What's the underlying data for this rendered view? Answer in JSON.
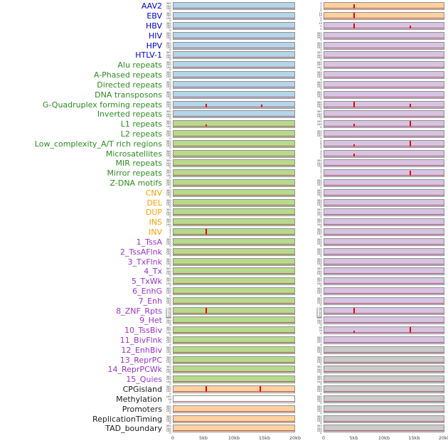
{
  "chart_data": {
    "type": "line",
    "layout": "small-multiples density tracks, 44 rows x 2 columns, red spike lines over flat baseline",
    "x_ticks": [
      "0",
      "5kb",
      "10kb",
      "15kb",
      "20kb"
    ],
    "x_range": [
      0,
      20000
    ],
    "default_yticks": [
      "300",
      "200",
      "100",
      "0"
    ],
    "rows": [
      {
        "label": "AAV2",
        "color": "label_blue",
        "left": {
          "bg": "blue_bg"
        },
        "right": {
          "bg": "orange_bg",
          "yticks": [
            "3",
            "2",
            "1",
            "0"
          ],
          "spikes": [
            {
              "x": 0.25,
              "h": 0.75
            }
          ]
        }
      },
      {
        "label": "EBV",
        "color": "label_blue",
        "left": {
          "bg": "blue_bg"
        },
        "right": {
          "bg": "orange_bg",
          "yticks": [
            "15",
            "10",
            "5",
            "0"
          ],
          "spikes": [
            {
              "x": 0.25,
              "h": 1.0
            }
          ]
        }
      },
      {
        "label": "HBV",
        "color": "label_blue",
        "left": {
          "bg": "blue_bg"
        },
        "right": {
          "bg": "purple_bg",
          "yticks": [
            "10",
            "5",
            "0"
          ],
          "spikes": [
            {
              "x": 0.25,
              "h": 0.8
            },
            {
              "x": 0.72,
              "h": 0.45
            }
          ]
        }
      },
      {
        "label": "HIV",
        "color": "label_blue",
        "left": {
          "bg": "blue_bg"
        },
        "right": {
          "bg": "purple_bg"
        }
      },
      {
        "label": "HPV",
        "color": "label_blue",
        "left": {
          "bg": "blue_bg"
        },
        "right": {
          "bg": "purple_bg"
        }
      },
      {
        "label": "HTLV-1",
        "color": "label_blue",
        "left": {
          "bg": "blue_bg"
        },
        "right": {
          "bg": "purple_bg"
        }
      },
      {
        "label": "Alu repeats",
        "color": "label_green",
        "left": {
          "bg": "blue_bg"
        },
        "right": {
          "bg": "purple_bg"
        }
      },
      {
        "label": "A-Phased repeats",
        "color": "label_green",
        "left": {
          "bg": "blue_bg"
        },
        "right": {
          "bg": "purple_bg"
        }
      },
      {
        "label": "Directed repeats",
        "color": "label_green",
        "left": {
          "bg": "blue_bg"
        },
        "right": {
          "bg": "purple_bg"
        }
      },
      {
        "label": "DNA transposons",
        "color": "label_green",
        "left": {
          "bg": "blue_bg"
        },
        "right": {
          "bg": "purple_bg"
        }
      },
      {
        "label": "G-Quadruplex forming repeats",
        "color": "label_green",
        "left": {
          "bg": "blue_bg",
          "spikes": [
            {
              "x": 0.27,
              "h": 0.5
            },
            {
              "x": 0.73,
              "h": 0.38
            }
          ]
        },
        "right": {
          "bg": "purple_bg",
          "spikes": [
            {
              "x": 0.25,
              "h": 0.85
            },
            {
              "x": 0.72,
              "h": 0.5
            }
          ]
        }
      },
      {
        "label": "Inverted repeats",
        "color": "label_green",
        "left": {
          "bg": "blue_bg"
        },
        "right": {
          "bg": "purple_bg"
        }
      },
      {
        "label": "L1 repeats",
        "color": "label_green",
        "left": {
          "bg": "green_bg",
          "spikes": [
            {
              "x": 0.27,
              "h": 0.4
            }
          ]
        },
        "right": {
          "bg": "purple_bg",
          "yticks": [
            "200",
            "100",
            "0"
          ],
          "spikes": [
            {
              "x": 0.25,
              "h": 0.5
            },
            {
              "x": 0.72,
              "h": 0.9
            }
          ]
        }
      },
      {
        "label": "L2 repeats",
        "color": "label_green",
        "left": {
          "bg": "green_bg"
        },
        "right": {
          "bg": "purple_bg"
        }
      },
      {
        "label": "Low_complexity_A/T rich regions",
        "color": "label_green",
        "left": {
          "bg": "green_bg"
        },
        "right": {
          "bg": "purple_bg",
          "yticks": [
            "9",
            "6",
            "3",
            "0"
          ],
          "spikes": [
            {
              "x": 0.25,
              "h": 0.35
            },
            {
              "x": 0.72,
              "h": 0.85
            }
          ]
        }
      },
      {
        "label": "Microsatellites",
        "color": "label_green",
        "left": {
          "bg": "green_bg"
        },
        "right": {
          "bg": "purple_bg",
          "yticks": [
            "3",
            "2",
            "1",
            "0"
          ],
          "spikes": [
            {
              "x": 0.25,
              "h": 0.45
            }
          ]
        }
      },
      {
        "label": "MIR repeats",
        "color": "label_green",
        "left": {
          "bg": "green_bg"
        },
        "right": {
          "bg": "purple_bg"
        }
      },
      {
        "label": "Mirror repeats",
        "color": "label_green",
        "left": {
          "bg": "green_bg"
        },
        "right": {
          "bg": "purple_bg",
          "yticks": [
            "3",
            "2",
            "1",
            "0"
          ],
          "spikes": [
            {
              "x": 0.72,
              "h": 0.85
            }
          ]
        }
      },
      {
        "label": "Z-DNA motifs",
        "color": "label_green",
        "left": {
          "bg": "green_bg"
        },
        "right": {
          "bg": "purple_bg"
        }
      },
      {
        "label": "CNV",
        "color": "label_orange",
        "left": {
          "bg": "green_bg"
        },
        "right": {
          "bg": "purple_bg"
        }
      },
      {
        "label": "DEL",
        "color": "label_orange",
        "left": {
          "bg": "green_bg"
        },
        "right": {
          "bg": "purple_bg"
        }
      },
      {
        "label": "DUP",
        "color": "label_orange",
        "left": {
          "bg": "green_bg"
        },
        "right": {
          "bg": "purple_bg"
        }
      },
      {
        "label": "INS",
        "color": "label_orange",
        "left": {
          "bg": "green_bg"
        },
        "right": {
          "bg": "purple_bg"
        }
      },
      {
        "label": "INV",
        "color": "label_orange",
        "left": {
          "bg": "green_bg",
          "yticks": [
            "3",
            "2",
            "1",
            "0"
          ],
          "spikes": [
            {
              "x": 0.27,
              "h": 0.95
            }
          ]
        },
        "right": {
          "bg": "purple_bg"
        }
      },
      {
        "label": "1_TssA",
        "color": "label_purple",
        "left": {
          "bg": "green_bg"
        },
        "right": {
          "bg": "purple_bg"
        }
      },
      {
        "label": "2_TssAFlnk",
        "color": "label_purple",
        "left": {
          "bg": "green_bg"
        },
        "right": {
          "bg": "purple_bg"
        }
      },
      {
        "label": "3_TxFlnk",
        "color": "label_purple",
        "left": {
          "bg": "green_bg"
        },
        "right": {
          "bg": "purple_bg"
        }
      },
      {
        "label": "4_Tx",
        "color": "label_purple",
        "left": {
          "bg": "green_bg"
        },
        "right": {
          "bg": "purple_bg"
        }
      },
      {
        "label": "5_TxWk",
        "color": "label_purple",
        "left": {
          "bg": "green_bg"
        },
        "right": {
          "bg": "purple_bg"
        }
      },
      {
        "label": "6_EnhG",
        "color": "label_purple",
        "left": {
          "bg": "green_bg"
        },
        "right": {
          "bg": "purple_bg"
        }
      },
      {
        "label": "7_Enh",
        "color": "label_purple",
        "left": {
          "bg": "green_bg"
        },
        "right": {
          "bg": "purple_bg"
        }
      },
      {
        "label": "8_ZNF_Rpts",
        "color": "label_purple",
        "left": {
          "bg": "green_bg",
          "yticks": [
            "1.00",
            "0.75",
            "0.50",
            "0.25",
            "0.00"
          ],
          "spikes": [
            {
              "x": 0.27,
              "h": 0.9
            }
          ]
        },
        "right": {
          "bg": "purple_bg",
          "yticks": [
            "1.00",
            "0.75",
            "0.50",
            "0.25",
            "0.00"
          ],
          "spikes": [
            {
              "x": 0.25,
              "h": 0.9
            }
          ]
        }
      },
      {
        "label": "9_Het",
        "color": "label_purple",
        "left": {
          "bg": "green_bg"
        },
        "right": {
          "bg": "purple_bg"
        }
      },
      {
        "label": "10_TssBiv",
        "color": "label_purple",
        "left": {
          "bg": "green_bg"
        },
        "right": {
          "bg": "purple_bg",
          "yticks": [
            "40",
            "20",
            "0"
          ],
          "spikes": [
            {
              "x": 0.25,
              "h": 0.35
            },
            {
              "x": 0.72,
              "h": 0.95
            }
          ]
        }
      },
      {
        "label": "11_BivFlnk",
        "color": "label_purple",
        "left": {
          "bg": "green_bg"
        },
        "right": {
          "bg": "purple_bg"
        }
      },
      {
        "label": "12_EnhBiv",
        "color": "label_purple",
        "left": {
          "bg": "green_bg"
        },
        "right": {
          "bg": "gray_bg"
        }
      },
      {
        "label": "13_ReprPC",
        "color": "label_purple",
        "left": {
          "bg": "green_bg"
        },
        "right": {
          "bg": "gray_bg"
        }
      },
      {
        "label": "14_ReprPCWk",
        "color": "label_purple",
        "left": {
          "bg": "green_bg"
        },
        "right": {
          "bg": "gray_bg"
        }
      },
      {
        "label": "15_Quies",
        "color": "label_purple",
        "left": {
          "bg": "green_bg"
        },
        "right": {
          "bg": "gray_bg"
        }
      },
      {
        "label": "CPGisland",
        "color": "label_black",
        "left": {
          "bg": "orange_bg",
          "spikes": [
            {
              "x": 0.27,
              "h": 0.95
            },
            {
              "x": 0.72,
              "h": 0.88
            }
          ]
        },
        "right": {
          "bg": "gray_bg"
        }
      },
      {
        "label": "Methylation",
        "color": "label_black",
        "left": {
          "bg": "white_bg",
          "yticks": [
            "100",
            "50",
            "0"
          ]
        },
        "right": {
          "bg": "gray_bg"
        }
      },
      {
        "label": "Promoters",
        "color": "label_black",
        "left": {
          "bg": "orange_bg"
        },
        "right": {
          "bg": "gray_bg"
        }
      },
      {
        "label": "ReplicationTiming",
        "color": "label_black",
        "left": {
          "bg": "orange_bg"
        },
        "right": {
          "bg": "gray_bg"
        }
      },
      {
        "label": "TAD_boundary",
        "color": "label_black",
        "left": {
          "bg": "orange_bg"
        },
        "right": {
          "bg": "gray_bg"
        }
      }
    ]
  },
  "palette": {
    "blue_bg": "#b3d6e8",
    "green_bg": "#b8da8c",
    "orange_bg": "#ffd2a0",
    "purple_bg": "#d7c4e2",
    "gray_bg": "#cbcbcb",
    "white_bg": "#ffffff",
    "spike": "#e60000",
    "baseline": "#a65a6a",
    "label_blue": "#0000cc",
    "label_green": "#2e8b22",
    "label_orange": "#ffa000",
    "label_purple": "#9933cc",
    "label_black": "#1a1a1a",
    "axis_text": "#444444"
  }
}
